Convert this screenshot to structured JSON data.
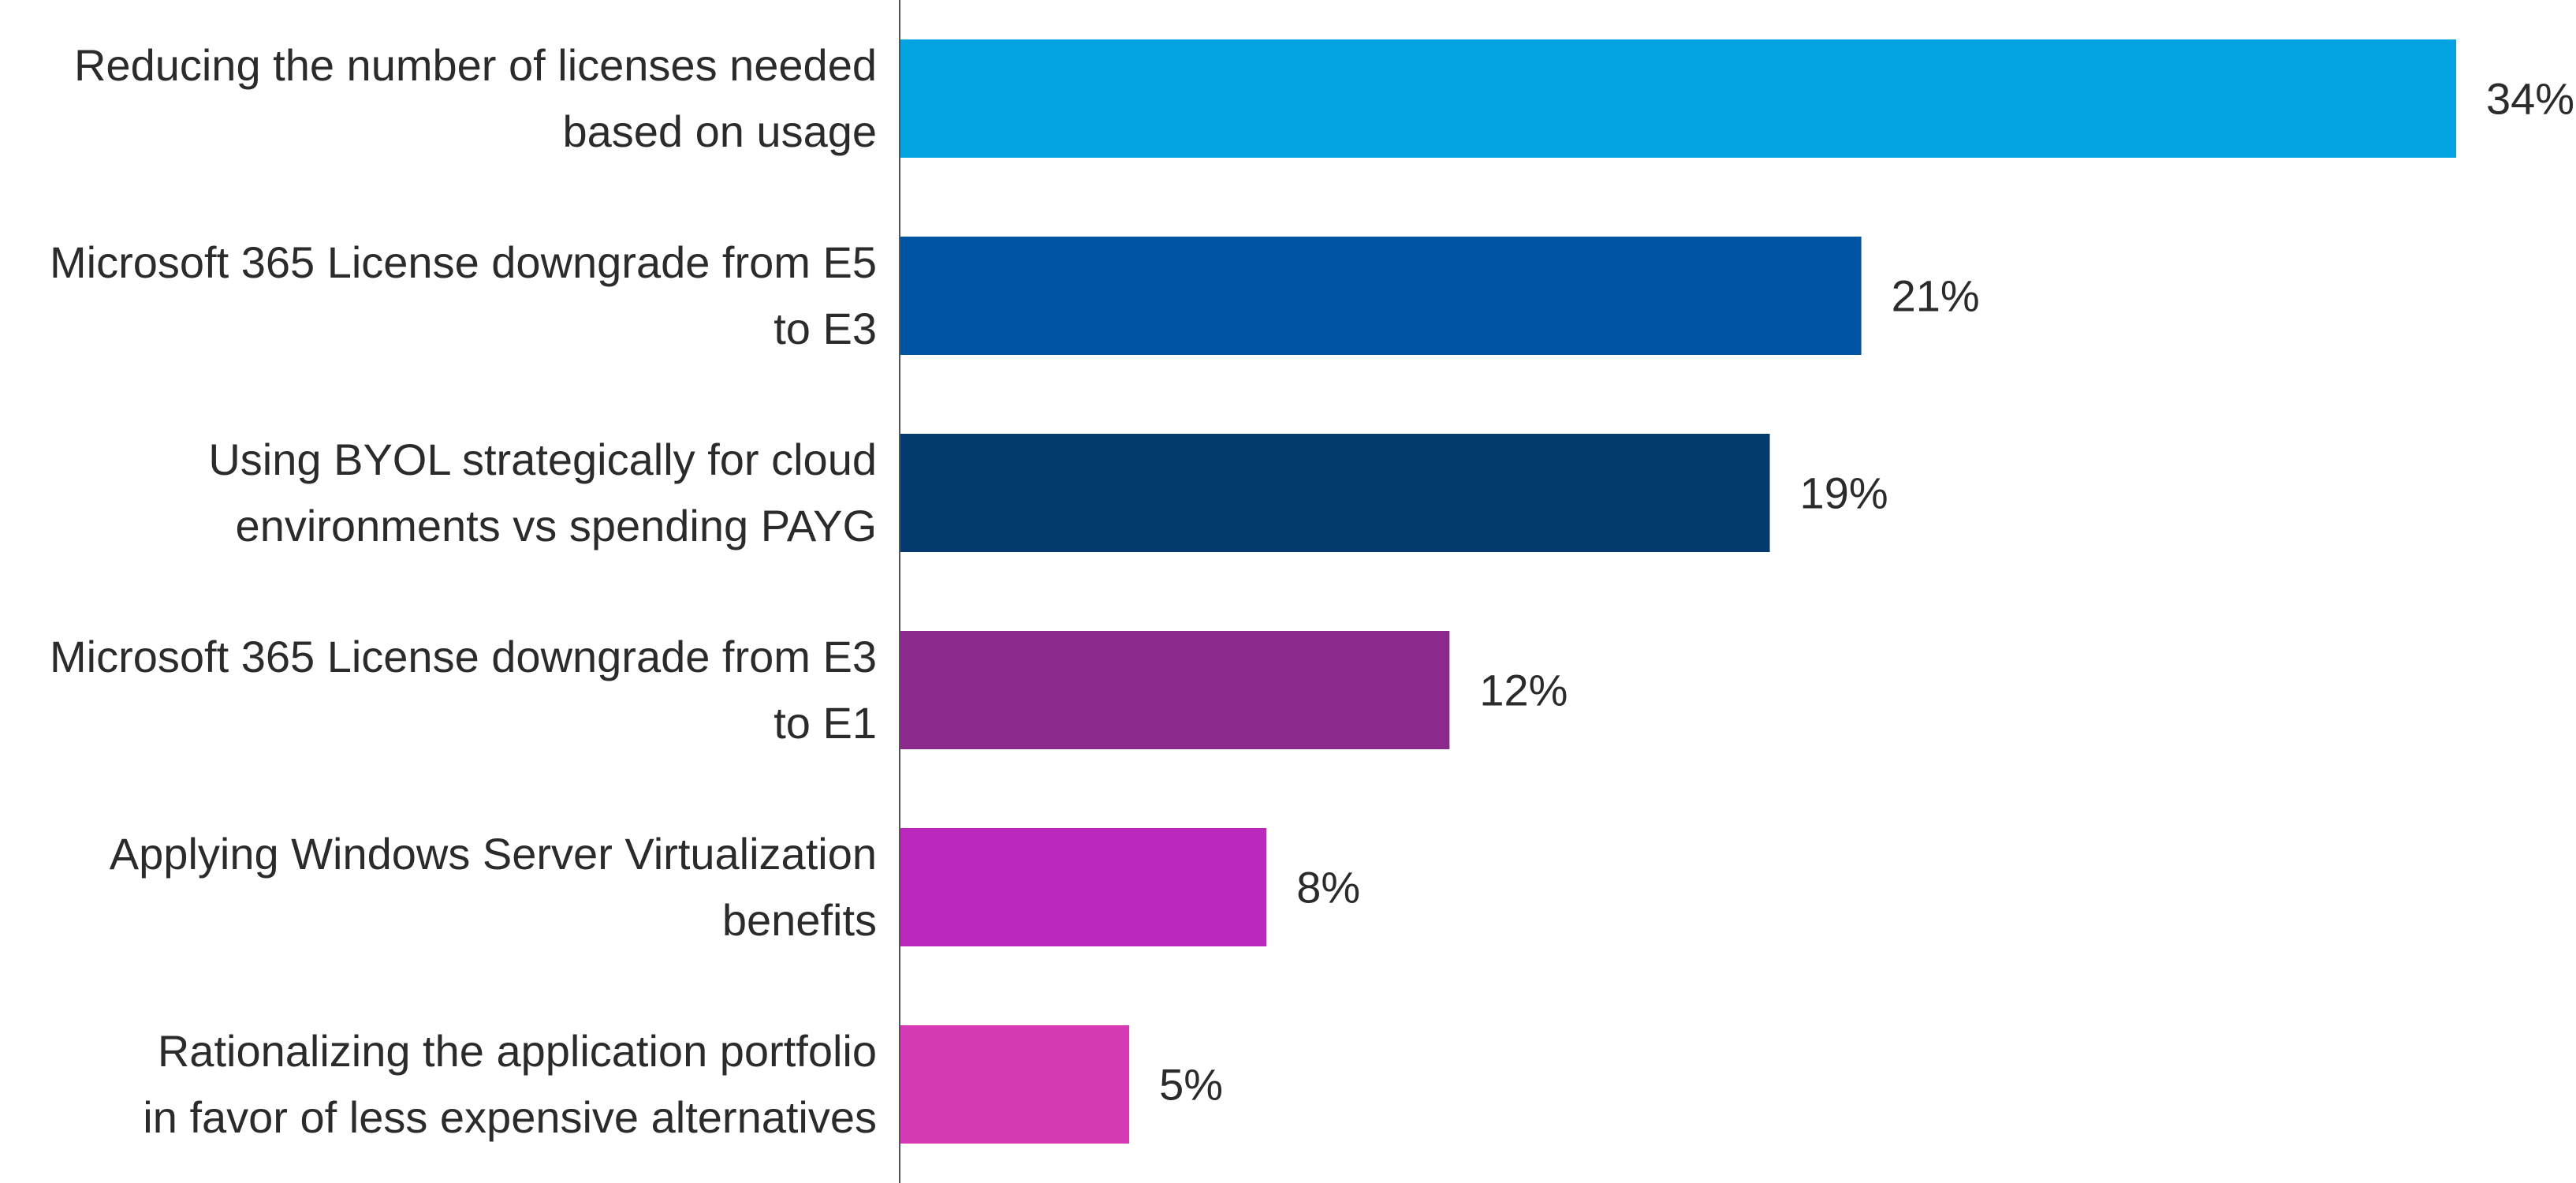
{
  "chart_data": {
    "type": "bar",
    "orientation": "horizontal",
    "title": "",
    "xlabel": "",
    "ylabel": "",
    "xlim": [
      0,
      34
    ],
    "grid": false,
    "legend": "none",
    "value_suffix": "%",
    "categories": [
      "Reducing the number of licenses needed based on usage",
      "Microsoft 365 License downgrade from E5 to E3",
      "Using BYOL strategically for cloud environments vs spending PAYG",
      "Microsoft 365 License downgrade from E3 to E1",
      "Applying Windows Server Virtualization benefits",
      "Rationalizing the application portfolio in favor of less expensive alternatives"
    ],
    "category_lines": [
      [
        "Reducing the number of licenses needed",
        "based on usage"
      ],
      [
        "Microsoft 365 License downgrade from E5",
        "to E3"
      ],
      [
        "Using BYOL strategically for cloud",
        "environments vs spending PAYG"
      ],
      [
        "Microsoft 365 License downgrade from E3",
        "to E1"
      ],
      [
        "Applying Windows Server Virtualization",
        "benefits"
      ],
      [
        "Rationalizing the application portfolio",
        "in favor of less expensive alternatives"
      ]
    ],
    "values": [
      34,
      21,
      19,
      12,
      8,
      5
    ],
    "value_labels": [
      "34%",
      "21%",
      "19%",
      "12%",
      "8%",
      "5%"
    ],
    "colors": [
      "#03a3e2",
      "#0055a2",
      "#053a6f",
      "#8b298c",
      "#bb29bc",
      "#d73ab5"
    ],
    "axis_color": "#555555"
  }
}
